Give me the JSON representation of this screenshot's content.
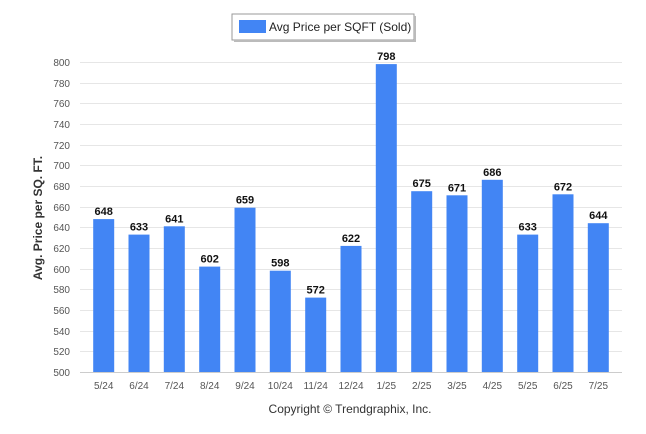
{
  "chart_data": {
    "type": "bar",
    "categories": [
      "5/24",
      "6/24",
      "7/24",
      "8/24",
      "9/24",
      "10/24",
      "11/24",
      "12/24",
      "1/25",
      "2/25",
      "3/25",
      "4/25",
      "5/25",
      "6/25",
      "7/25"
    ],
    "series": [
      {
        "name": "Avg Price per SQFT (Sold)",
        "values": [
          648,
          633,
          641,
          602,
          659,
          598,
          572,
          622,
          798,
          675,
          671,
          686,
          633,
          672,
          644
        ]
      }
    ],
    "xlabel": "",
    "ylabel": "Avg. Price per SQ. FT.",
    "ylim": [
      500,
      800
    ],
    "yticks": [
      500,
      520,
      540,
      560,
      580,
      600,
      620,
      640,
      660,
      680,
      700,
      720,
      740,
      760,
      780,
      800
    ],
    "grid": true,
    "legend_position": "top-center",
    "bar_color": "#4285f4"
  },
  "footer": {
    "copyright": "Copyright © Trendgraphix, Inc."
  }
}
